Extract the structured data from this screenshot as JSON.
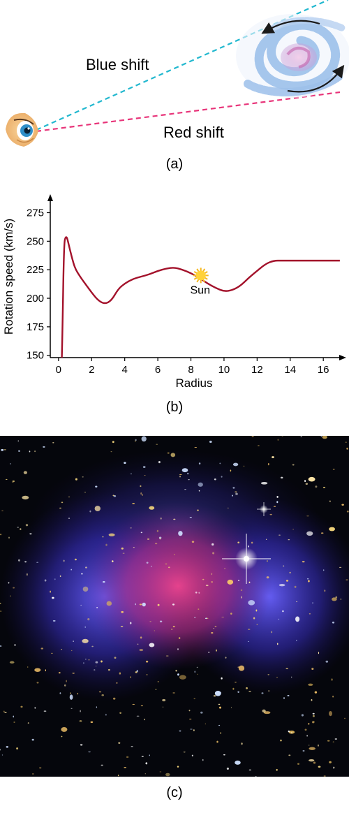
{
  "panel_a": {
    "blue_shift_label": "Blue shift",
    "red_shift_label": "Red shift",
    "caption": "(a)",
    "colors": {
      "blue_line": "#22b8cf",
      "red_line": "#e8357a",
      "galaxy": "#8fb6e8",
      "galaxy_core": "#d98fc7"
    },
    "icons": [
      "eye-icon",
      "spiral-galaxy-icon",
      "rotation-arrow-icon"
    ]
  },
  "panel_b": {
    "caption": "(b)",
    "sun_label": "Sun",
    "sun_position": {
      "radius": 8.6,
      "speed": 220
    },
    "chart_data": {
      "type": "line",
      "xlabel": "Radius",
      "ylabel": "Rotation speed (km/s)",
      "xticks": [
        0,
        2,
        4,
        6,
        8,
        10,
        12,
        14,
        16
      ],
      "yticks": [
        150,
        175,
        200,
        225,
        250,
        275
      ],
      "xlim": [
        -0.5,
        17.3
      ],
      "ylim": [
        148,
        290
      ],
      "grid": false,
      "series": [
        {
          "color": "#a3122b",
          "x": [
            0.2,
            0.25,
            0.3,
            0.35,
            0.4,
            0.5,
            0.6,
            0.8,
            1.0,
            1.3,
            1.6,
            2.0,
            2.4,
            2.8,
            3.2,
            3.6,
            4.0,
            4.5,
            5.0,
            5.5,
            6.0,
            6.5,
            7.0,
            7.5,
            8.0,
            8.5,
            9.0,
            9.5,
            10.0,
            10.5,
            11.0,
            11.5,
            12.0,
            12.5,
            13.0,
            13.5,
            14.0,
            15.0,
            16.0,
            17.0
          ],
          "y": [
            148,
            180,
            225,
            248,
            253,
            254,
            248,
            236,
            226,
            219,
            213,
            205,
            198,
            195,
            198,
            208,
            213,
            217,
            219,
            221,
            224,
            226,
            227,
            225,
            222,
            218,
            213,
            209,
            206,
            207,
            211,
            218,
            224,
            230,
            233,
            233,
            233,
            233,
            233,
            233
          ]
        }
      ]
    }
  },
  "panel_c": {
    "caption": "(c)",
    "colors": {
      "space": "#05060c",
      "blue_glow": "#4a40e8",
      "pink_glow": "#e0347f",
      "galaxy_dot": "#f0d27a"
    }
  }
}
